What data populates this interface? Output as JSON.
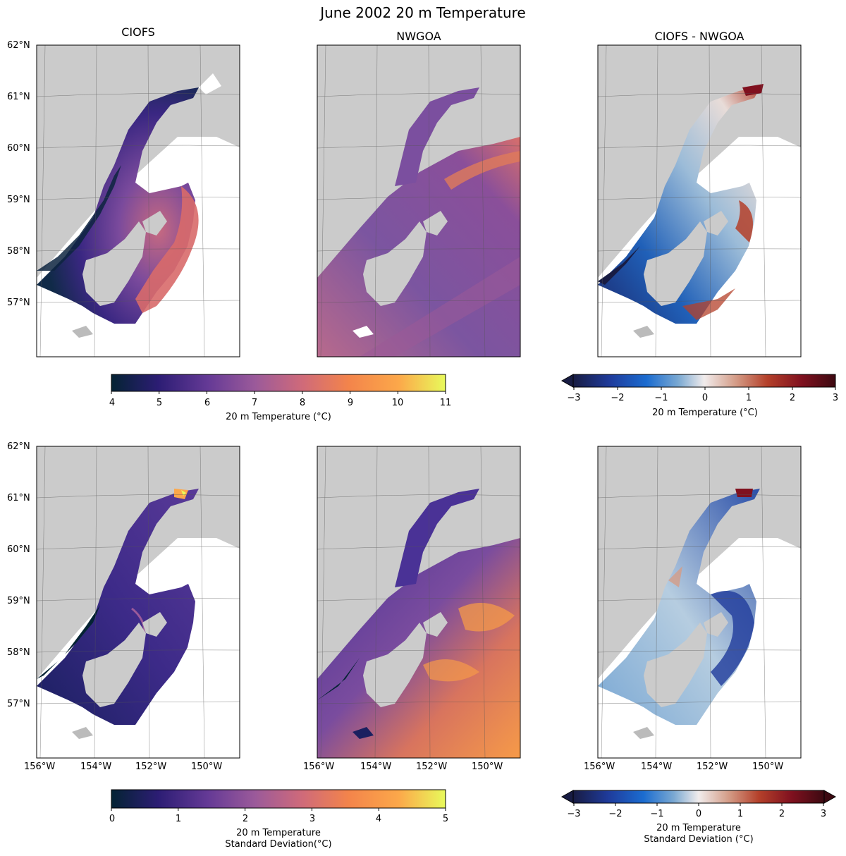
{
  "figure": {
    "title": "June 2002 20 m Temperature"
  },
  "panel_titles": [
    "CIOFS",
    "NWGOA",
    "CIOFS - NWGOA"
  ],
  "lat_labels": [
    "62°N",
    "61°N",
    "60°N",
    "59°N",
    "58°N",
    "57°N"
  ],
  "lon_labels": [
    "156°W",
    "154°W",
    "152°W",
    "150°W"
  ],
  "colorbars": {
    "temp": {
      "ticks": [
        "4",
        "5",
        "6",
        "7",
        "8",
        "9",
        "10",
        "11"
      ],
      "label": "20 m Temperature (°C)",
      "colormap": "thermal",
      "colors": [
        "#042333",
        "#2c1d74",
        "#653a96",
        "#9b5a9a",
        "#cf6a7a",
        "#f3844b",
        "#fca84a",
        "#e8fa5b"
      ]
    },
    "temp_diff": {
      "ticks": [
        "−3",
        "−2",
        "−1",
        "0",
        "1",
        "2",
        "3"
      ],
      "label": "20 m Temperature (°C)",
      "colormap": "balance",
      "colors": [
        "#181c43",
        "#1f3b9b",
        "#1b6cd0",
        "#79a8d2",
        "#f1ecec",
        "#d49c87",
        "#b4402a",
        "#80111f",
        "#3c0911"
      ]
    },
    "std": {
      "ticks": [
        "0",
        "1",
        "2",
        "3",
        "4",
        "5"
      ],
      "label_line1": "20 m Temperature",
      "label_line2": "Standard Deviation(°C)",
      "colormap": "thermal"
    },
    "std_diff": {
      "ticks": [
        "−3",
        "−2",
        "−1",
        "0",
        "1",
        "2",
        "3"
      ],
      "label_line1": "20 m Temperature",
      "label_line2": "Standard Deviation (°C)",
      "colormap": "balance"
    }
  },
  "map_colors": {
    "land": "#cbcbcb",
    "nodata": "#ffffff",
    "frame": "#000000",
    "grid": "#555555"
  }
}
